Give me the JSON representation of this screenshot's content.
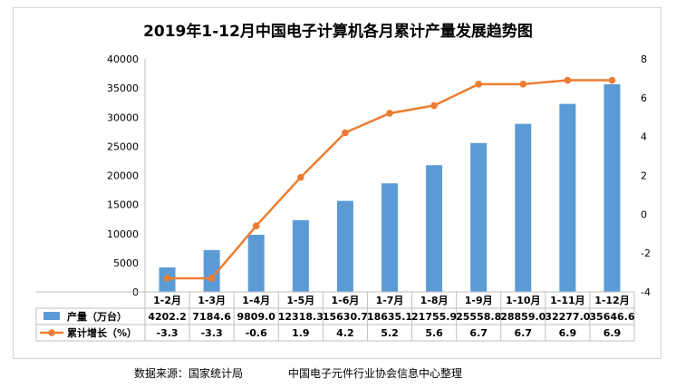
{
  "chart_data": {
    "type": "bar",
    "title": "2019年1-12月中国电子计算机各月累计产量发展趋势图",
    "categories": [
      "1-2月",
      "1-3月",
      "1-4月",
      "1-5月",
      "1-6月",
      "1-7月",
      "1-8月",
      "1-9月",
      "1-10月",
      "1-11月",
      "1-12月"
    ],
    "series": [
      {
        "name": "产量（万台）",
        "type": "bar",
        "axis": "left",
        "color": "#5b9bd5",
        "values": [
          4202.2,
          7184.6,
          9809.0,
          12318.3,
          15630.7,
          18635.1,
          21755.9,
          25558.8,
          28859.0,
          32277.0,
          35646.6
        ],
        "labels": [
          "4202.2",
          "7184.6",
          "9809.0",
          "12318.3",
          "15630.7",
          "18635.1",
          "21755.9",
          "25558.8",
          "28859.0",
          "32277.0",
          "35646.6"
        ]
      },
      {
        "name": "累计增长（%）",
        "type": "line",
        "axis": "right",
        "color": "#ed7d31",
        "values": [
          -3.3,
          -3.3,
          -0.6,
          1.9,
          4.2,
          5.2,
          5.6,
          6.7,
          6.7,
          6.9,
          6.9
        ],
        "labels": [
          "-3.3",
          "-3.3",
          "-0.6",
          "1.9",
          "4.2",
          "5.2",
          "5.6",
          "6.7",
          "6.7",
          "6.9",
          "6.9"
        ]
      }
    ],
    "y_left": {
      "min": 0,
      "max": 40000,
      "step": 5000,
      "ticks": [
        "0",
        "5000",
        "10000",
        "15000",
        "20000",
        "25000",
        "30000",
        "35000",
        "40000"
      ]
    },
    "y_right": {
      "min": -4,
      "max": 8,
      "step": 2,
      "ticks": [
        "-4",
        "-2",
        "0",
        "2",
        "4",
        "6",
        "8"
      ]
    },
    "legend": "data-table below chart"
  },
  "footer": {
    "source": "数据来源：国家统计局",
    "org": "中国电子元件行业协会信息中心整理"
  }
}
